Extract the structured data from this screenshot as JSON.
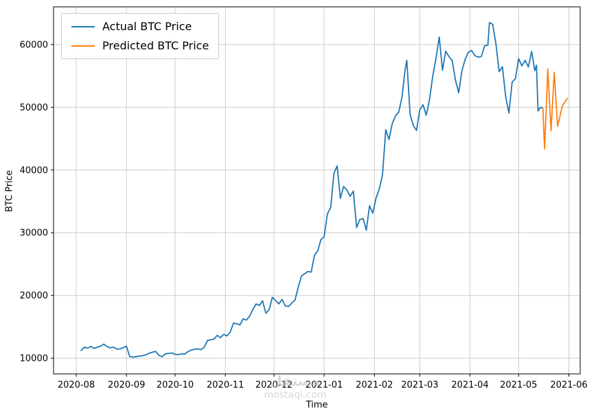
{
  "watermark": {
    "line1": "مستقل",
    "line2": "mostaql.com"
  },
  "chart_data": {
    "type": "line",
    "title": "",
    "xlabel": "Time",
    "ylabel": "BTC Price",
    "grid": true,
    "legend_position": "upper left",
    "xlim": [
      "2020-07-18",
      "2021-06-08"
    ],
    "ylim": [
      7500,
      66000
    ],
    "x_ticks": [
      "2020-08",
      "2020-09",
      "2020-10",
      "2020-11",
      "2020-12",
      "2021-01",
      "2021-02",
      "2021-03",
      "2021-04",
      "2021-05",
      "2021-06"
    ],
    "y_ticks": [
      10000,
      20000,
      30000,
      40000,
      50000,
      60000
    ],
    "series": [
      {
        "name": "Actual BTC Price",
        "color": "#1f77b4",
        "points": [
          [
            "2020-08-04",
            11230
          ],
          [
            "2020-08-06",
            11760
          ],
          [
            "2020-08-08",
            11600
          ],
          [
            "2020-08-10",
            11890
          ],
          [
            "2020-08-12",
            11560
          ],
          [
            "2020-08-14",
            11780
          ],
          [
            "2020-08-16",
            11910
          ],
          [
            "2020-08-18",
            12250
          ],
          [
            "2020-08-20",
            11850
          ],
          [
            "2020-08-22",
            11650
          ],
          [
            "2020-08-24",
            11760
          ],
          [
            "2020-08-26",
            11450
          ],
          [
            "2020-08-28",
            11480
          ],
          [
            "2020-08-30",
            11680
          ],
          [
            "2020-09-01",
            11920
          ],
          [
            "2020-09-03",
            10240
          ],
          [
            "2020-09-05",
            10170
          ],
          [
            "2020-09-07",
            10260
          ],
          [
            "2020-09-09",
            10330
          ],
          [
            "2020-09-11",
            10400
          ],
          [
            "2020-09-13",
            10550
          ],
          [
            "2020-09-15",
            10780
          ],
          [
            "2020-09-17",
            10950
          ],
          [
            "2020-09-19",
            11090
          ],
          [
            "2020-09-21",
            10460
          ],
          [
            "2020-09-23",
            10250
          ],
          [
            "2020-09-25",
            10690
          ],
          [
            "2020-09-27",
            10770
          ],
          [
            "2020-09-29",
            10840
          ],
          [
            "2020-10-01",
            10620
          ],
          [
            "2020-10-03",
            10570
          ],
          [
            "2020-10-05",
            10700
          ],
          [
            "2020-10-07",
            10670
          ],
          [
            "2020-10-09",
            11060
          ],
          [
            "2020-10-11",
            11300
          ],
          [
            "2020-10-13",
            11420
          ],
          [
            "2020-10-15",
            11500
          ],
          [
            "2020-10-17",
            11360
          ],
          [
            "2020-10-19",
            11760
          ],
          [
            "2020-10-21",
            12820
          ],
          [
            "2020-10-23",
            12930
          ],
          [
            "2020-10-25",
            13050
          ],
          [
            "2020-10-27",
            13650
          ],
          [
            "2020-10-29",
            13270
          ],
          [
            "2020-10-31",
            13800
          ],
          [
            "2020-11-02",
            13560
          ],
          [
            "2020-11-04",
            14140
          ],
          [
            "2020-11-06",
            15600
          ],
          [
            "2020-11-08",
            15480
          ],
          [
            "2020-11-10",
            15300
          ],
          [
            "2020-11-12",
            16280
          ],
          [
            "2020-11-14",
            16070
          ],
          [
            "2020-11-16",
            16720
          ],
          [
            "2020-11-18",
            17780
          ],
          [
            "2020-11-20",
            18650
          ],
          [
            "2020-11-22",
            18400
          ],
          [
            "2020-11-24",
            19160
          ],
          [
            "2020-11-26",
            17150
          ],
          [
            "2020-11-28",
            17740
          ],
          [
            "2020-11-30",
            19700
          ],
          [
            "2020-12-02",
            19210
          ],
          [
            "2020-12-04",
            18650
          ],
          [
            "2020-12-06",
            19380
          ],
          [
            "2020-12-08",
            18320
          ],
          [
            "2020-12-10",
            18250
          ],
          [
            "2020-12-12",
            18800
          ],
          [
            "2020-12-14",
            19250
          ],
          [
            "2020-12-16",
            21340
          ],
          [
            "2020-12-18",
            23120
          ],
          [
            "2020-12-20",
            23480
          ],
          [
            "2020-12-22",
            23820
          ],
          [
            "2020-12-24",
            23730
          ],
          [
            "2020-12-26",
            26440
          ],
          [
            "2020-12-28",
            27080
          ],
          [
            "2020-12-30",
            28900
          ],
          [
            "2021-01-01",
            29370
          ],
          [
            "2021-01-03",
            33000
          ],
          [
            "2021-01-05",
            33990
          ],
          [
            "2021-01-07",
            39450
          ],
          [
            "2021-01-09",
            40640
          ],
          [
            "2021-01-11",
            35470
          ],
          [
            "2021-01-13",
            37370
          ],
          [
            "2021-01-15",
            36820
          ],
          [
            "2021-01-17",
            35800
          ],
          [
            "2021-01-19",
            36640
          ],
          [
            "2021-01-21",
            30830
          ],
          [
            "2021-01-23",
            32100
          ],
          [
            "2021-01-25",
            32260
          ],
          [
            "2021-01-27",
            30410
          ],
          [
            "2021-01-29",
            34300
          ],
          [
            "2021-01-31",
            33110
          ],
          [
            "2021-02-02",
            35500
          ],
          [
            "2021-02-04",
            36980
          ],
          [
            "2021-02-06",
            39250
          ],
          [
            "2021-02-08",
            46430
          ],
          [
            "2021-02-10",
            44850
          ],
          [
            "2021-02-12",
            47370
          ],
          [
            "2021-02-14",
            48640
          ],
          [
            "2021-02-16",
            49200
          ],
          [
            "2021-02-18",
            51600
          ],
          [
            "2021-02-20",
            56100
          ],
          [
            "2021-02-21",
            57480
          ],
          [
            "2021-02-23",
            48900
          ],
          [
            "2021-02-25",
            47090
          ],
          [
            "2021-02-27",
            46300
          ],
          [
            "2021-03-01",
            49630
          ],
          [
            "2021-03-03",
            50380
          ],
          [
            "2021-03-05",
            48750
          ],
          [
            "2021-03-07",
            51210
          ],
          [
            "2021-03-09",
            54920
          ],
          [
            "2021-03-11",
            57810
          ],
          [
            "2021-03-13",
            61200
          ],
          [
            "2021-03-15",
            55910
          ],
          [
            "2021-03-17",
            58920
          ],
          [
            "2021-03-19",
            58090
          ],
          [
            "2021-03-21",
            57410
          ],
          [
            "2021-03-23",
            54340
          ],
          [
            "2021-03-25",
            52310
          ],
          [
            "2021-03-27",
            55790
          ],
          [
            "2021-03-29",
            57640
          ],
          [
            "2021-03-31",
            58780
          ],
          [
            "2021-04-02",
            59030
          ],
          [
            "2021-04-04",
            58230
          ],
          [
            "2021-04-06",
            57990
          ],
          [
            "2021-04-08",
            58080
          ],
          [
            "2021-04-10",
            59790
          ],
          [
            "2021-04-12",
            59890
          ],
          [
            "2021-04-13",
            63500
          ],
          [
            "2021-04-15",
            63210
          ],
          [
            "2021-04-17",
            60050
          ],
          [
            "2021-04-19",
            55660
          ],
          [
            "2021-04-21",
            56470
          ],
          [
            "2021-04-23",
            51730
          ],
          [
            "2021-04-25",
            49080
          ],
          [
            "2021-04-27",
            54020
          ],
          [
            "2021-04-29",
            54560
          ],
          [
            "2021-05-01",
            57750
          ],
          [
            "2021-05-03",
            56600
          ],
          [
            "2021-05-05",
            57470
          ],
          [
            "2021-05-07",
            56420
          ],
          [
            "2021-05-09",
            58890
          ],
          [
            "2021-05-11",
            55850
          ],
          [
            "2021-05-12",
            56700
          ],
          [
            "2021-05-13",
            49400
          ],
          [
            "2021-05-14",
            49850
          ],
          [
            "2021-05-15",
            50000
          ],
          [
            "2021-05-16",
            49800
          ]
        ]
      },
      {
        "name": "Predicted BTC Price",
        "color": "#ff7f0e",
        "points": [
          [
            "2021-05-16",
            49800
          ],
          [
            "2021-05-17",
            43350
          ],
          [
            "2021-05-19",
            56100
          ],
          [
            "2021-05-21",
            46250
          ],
          [
            "2021-05-23",
            55600
          ],
          [
            "2021-05-25",
            46950
          ],
          [
            "2021-05-28",
            50200
          ],
          [
            "2021-05-31",
            51400
          ]
        ]
      }
    ]
  }
}
